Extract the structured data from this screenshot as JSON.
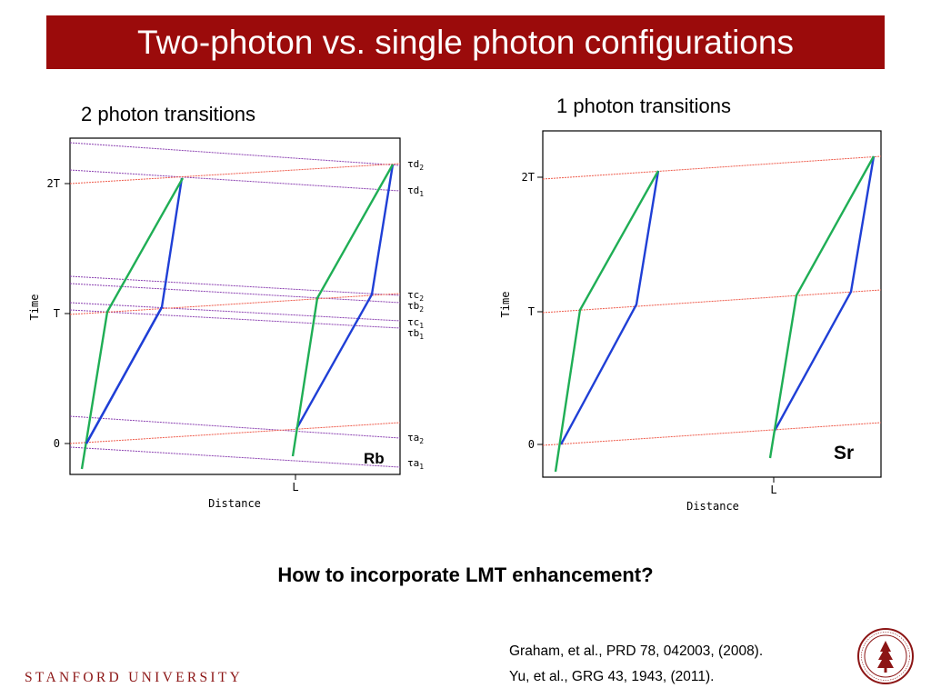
{
  "slide": {
    "title": "Two-photon vs. single photon configurations",
    "question": "How to incorporate LMT enhancement?",
    "references": [
      "Graham, et al., PRD 78, 042003, (2008).",
      "Yu, et al., GRG 43, 1943, (2011)."
    ],
    "brand": "STANFORD UNIVERSITY"
  },
  "left_diagram": {
    "heading": "2 photon transitions",
    "ylabel": "Time",
    "xlabel": "Distance",
    "ticks_y": [
      "2T",
      "T",
      "0"
    ],
    "tick_x": "L",
    "atom_label": "Rb",
    "pulse_labels": [
      {
        "tau": "τ",
        "sub": "d",
        "idx": "2"
      },
      {
        "tau": "τ",
        "sub": "d",
        "idx": "1"
      },
      {
        "tau": "τ",
        "sub": "c",
        "idx": "2"
      },
      {
        "tau": "τ",
        "sub": "b",
        "idx": "2"
      },
      {
        "tau": "τ",
        "sub": "c",
        "idx": "1"
      },
      {
        "tau": "τ",
        "sub": "b",
        "idx": "1"
      },
      {
        "tau": "τ",
        "sub": "a",
        "idx": "2"
      },
      {
        "tau": "τ",
        "sub": "a",
        "idx": "1"
      }
    ]
  },
  "right_diagram": {
    "heading": "1 photon transitions",
    "ylabel": "Time",
    "xlabel": "Distance",
    "ticks_y": [
      "2T",
      "T",
      "0"
    ],
    "tick_x": "L",
    "atom_label": "Sr"
  },
  "colors": {
    "title_bar": "#9b0b0b",
    "brand": "#8c1515",
    "blue_path": "#1f3fd6",
    "green_path": "#1fae55",
    "red_pulse": "#ee5a4a",
    "purple_pulse": "#8a3fb0"
  }
}
